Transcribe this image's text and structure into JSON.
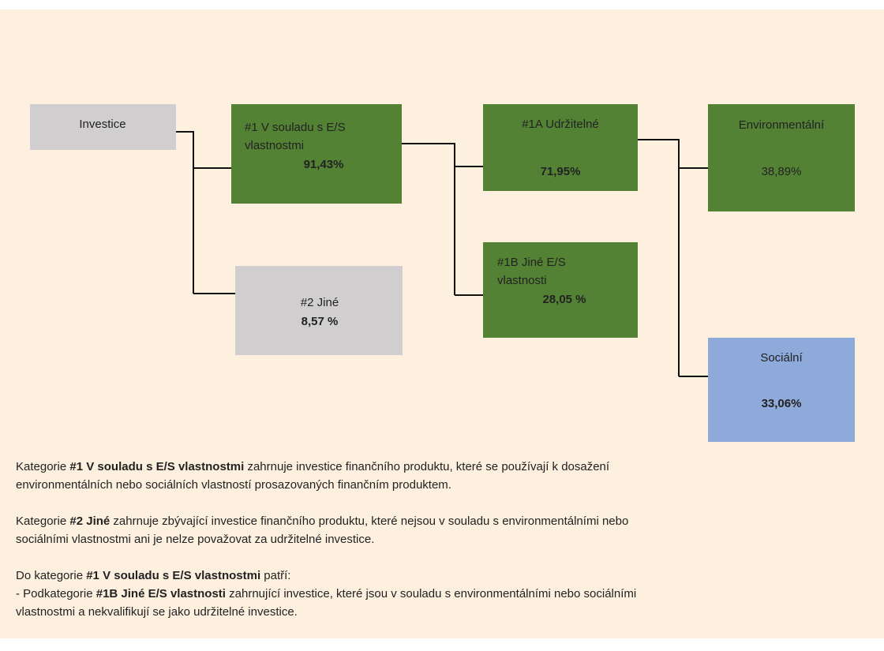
{
  "nodes": [
    {
      "lines": [
        {
          "text": "Investice"
        }
      ]
    },
    {
      "lines": [
        {
          "text": "#1 V souladu s E/S"
        },
        {
          "text": "vlastnostmi"
        },
        {
          "text": "91,43%",
          "bold": true
        }
      ]
    },
    {
      "lines": [
        {
          "text": "#2 Jiné"
        },
        {
          "text": "8,57 %",
          "bold": true
        }
      ]
    },
    {
      "lines": [
        {
          "text": "#1A Udržitelné"
        },
        {
          "text": "71,95%",
          "bold": true
        }
      ]
    },
    {
      "lines": [
        {
          "text": "#1B Jiné E/S"
        },
        {
          "text": "vlastnosti"
        },
        {
          "text": "28,05 %",
          "bold": true
        }
      ]
    },
    {
      "lines": [
        {
          "text": "Environmentální"
        },
        {
          "text": "38,89%"
        }
      ]
    },
    {
      "lines": [
        {
          "text": "Sociální"
        },
        {
          "text": "33,06%",
          "bold": true
        }
      ]
    }
  ],
  "paragraphs": [
    {
      "lines": [
        [
          {
            "text": "Kategorie "
          },
          {
            "text": "#1 V souladu s E/S vlastnostmi",
            "bold": true
          },
          {
            "text": " zahrnuje investice finančního produktu, které se používají k dosažení"
          }
        ],
        [
          {
            "text": "environmentálních nebo sociálních vlastností prosazovaných finančním produktem."
          }
        ]
      ]
    },
    {
      "lines": [
        [
          {
            "text": "Kategorie "
          },
          {
            "text": "#2 Jiné",
            "bold": true
          },
          {
            "text": " zahrnuje zbývající investice finančního produktu, které nejsou v souladu s environmentálními nebo"
          }
        ],
        [
          {
            "text": "sociálními vlastnostmi ani je nelze považovat za udržitelné investice."
          }
        ]
      ]
    },
    {
      "lines": [
        [
          {
            "text": "Do kategorie "
          },
          {
            "text": "#1 V souladu s E/S vlastnostmi",
            "bold": true
          },
          {
            "text": " patří:"
          }
        ],
        [
          {
            "text": "- Podkategorie "
          },
          {
            "text": "#1B Jiné E/S vlastnosti",
            "bold": true
          },
          {
            "text": " zahrnující investice, které jsou v souladu s environmentálními nebo sociálními"
          }
        ],
        [
          {
            "text": "vlastnostmi a nekvalifikují se jako udržitelné investice."
          }
        ]
      ]
    }
  ]
}
